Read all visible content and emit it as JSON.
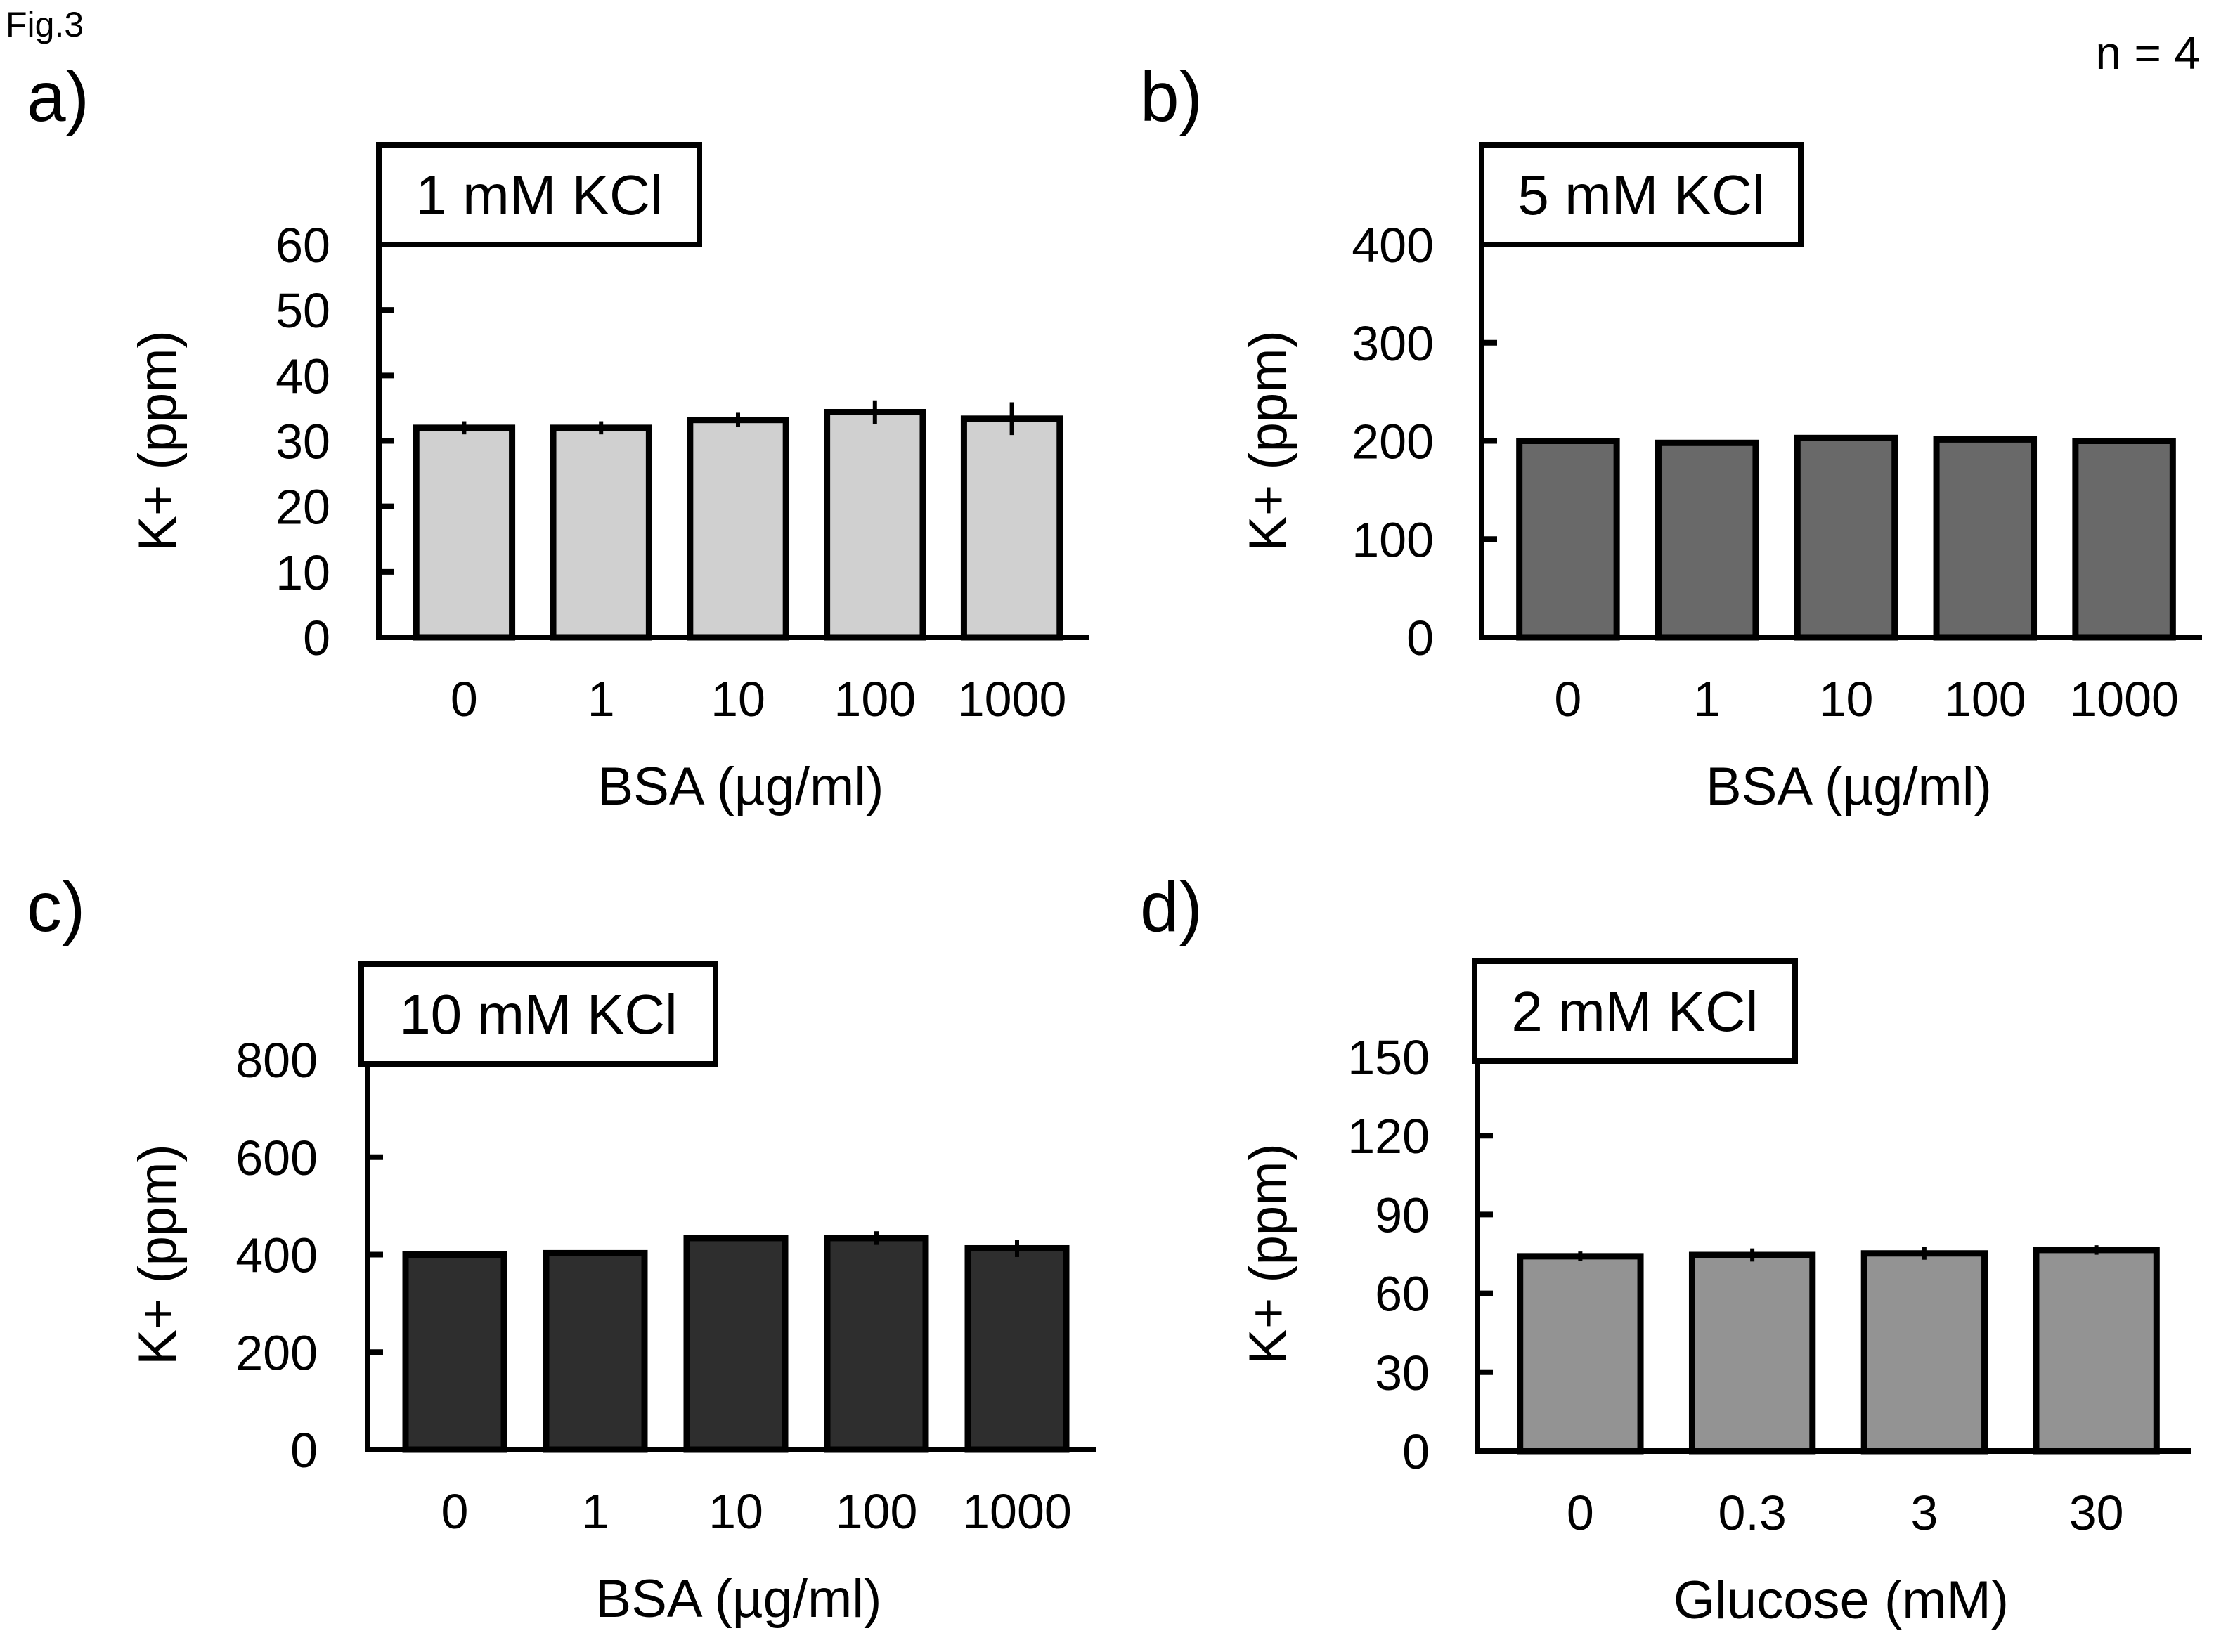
{
  "figure": {
    "label": "Fig.3",
    "n_label": "n = 4"
  },
  "chart_data": [
    {
      "type": "bar",
      "panel": "a)",
      "title": "1 mM KCl",
      "xlabel": "BSA (µg/ml)",
      "ylabel": "K+ (ppm)",
      "categories": [
        "0",
        "1",
        "10",
        "100",
        "1000"
      ],
      "values": [
        32.0,
        32.0,
        33.2,
        34.4,
        33.4
      ],
      "errors": [
        1.0,
        1.0,
        1.1,
        1.8,
        2.5
      ],
      "ylim": [
        0,
        60
      ],
      "yticks": [
        0,
        10,
        20,
        30,
        40,
        50,
        60
      ],
      "bar_color": "#d0d0d0",
      "grid": false,
      "legend": "none"
    },
    {
      "type": "bar",
      "panel": "b)",
      "title": "5 mM KCl",
      "xlabel": "BSA (µg/ml)",
      "ylabel": "K+ (ppm)",
      "categories": [
        "0",
        "1",
        "10",
        "100",
        "1000"
      ],
      "values": [
        200,
        198,
        203,
        201.5,
        200
      ],
      "errors": [
        1,
        1,
        1,
        1,
        1
      ],
      "ylim": [
        0,
        400
      ],
      "yticks": [
        0,
        100,
        200,
        300,
        400
      ],
      "bar_color": "#696969",
      "grid": false,
      "legend": "none"
    },
    {
      "type": "bar",
      "panel": "c)",
      "title": "10 mM KCl",
      "xlabel": "BSA (µg/ml)",
      "ylabel": "K+ (ppm)",
      "categories": [
        "0",
        "1",
        "10",
        "100",
        "1000"
      ],
      "values": [
        400,
        403,
        434,
        434,
        413
      ],
      "errors": [
        3,
        3,
        4,
        14,
        18
      ],
      "ylim": [
        0,
        800
      ],
      "yticks": [
        0,
        200,
        400,
        600,
        800
      ],
      "bar_color": "#2e2e2e",
      "grid": false,
      "legend": "none"
    },
    {
      "type": "bar",
      "panel": "d)",
      "title": "2 mM KCl",
      "xlabel": "Glucose (mM)",
      "ylabel": "K+ (ppm)",
      "categories": [
        "0",
        "0.3",
        "3",
        "30"
      ],
      "values": [
        74.1,
        74.6,
        75.2,
        76.5
      ],
      "errors": [
        1.8,
        2.5,
        2.4,
        1.8
      ],
      "ylim": [
        0,
        150
      ],
      "yticks": [
        0,
        30,
        60,
        90,
        120,
        150
      ],
      "bar_color": "#939393",
      "grid": false,
      "legend": "none"
    }
  ]
}
